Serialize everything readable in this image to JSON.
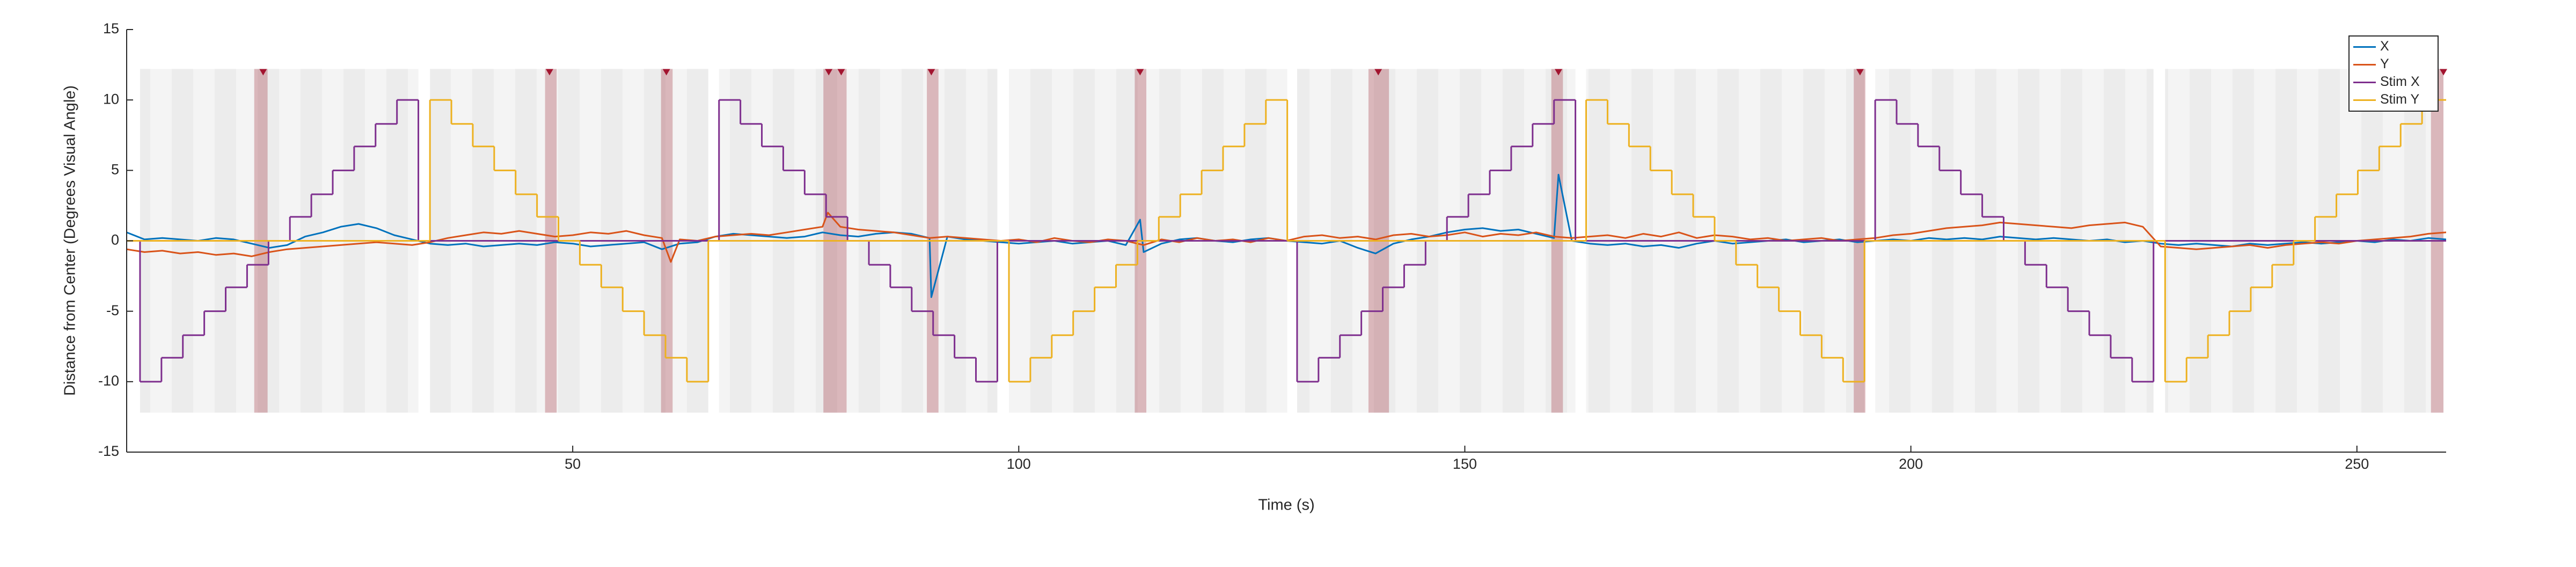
{
  "chart_data": {
    "type": "line",
    "xlabel": "Time (s)",
    "ylabel": "Distance from Center (Degrees Visual Angle)",
    "xlim": [
      0,
      260
    ],
    "xticks": [
      50,
      100,
      150,
      200,
      250
    ],
    "ylim": [
      -15,
      15
    ],
    "yticks": [
      -15,
      -10,
      -5,
      0,
      5,
      10,
      15
    ],
    "grid": false,
    "legend": "northeast",
    "band_ylim": [
      -12.2,
      12.2
    ],
    "blocks": [
      [
        1.5,
        32.7
      ],
      [
        34,
        65.2
      ],
      [
        66.4,
        97.6
      ],
      [
        98.9,
        130.1
      ],
      [
        131.2,
        162.4
      ],
      [
        163.6,
        194.8
      ],
      [
        196,
        227.2
      ],
      [
        228.5,
        259.7
      ]
    ],
    "highlights": [
      [
        14.3,
        15.8
      ],
      [
        46.9,
        48.2
      ],
      [
        59.9,
        61.2
      ],
      [
        78.1,
        80.7
      ],
      [
        89.7,
        91.0
      ],
      [
        113.0,
        114.3
      ],
      [
        139.2,
        141.5
      ],
      [
        159.7,
        161.0
      ],
      [
        193.6,
        194.9
      ],
      [
        258.3,
        259.7
      ]
    ],
    "events": [
      15.3,
      47.4,
      60.5,
      78.7,
      80.1,
      90.2,
      113.6,
      140.3,
      160.5,
      194.3,
      259.7
    ],
    "series": [
      {
        "name": "X",
        "color": "#0072BD",
        "x": [
          0,
          2,
          4,
          6,
          8,
          10,
          12,
          14,
          16,
          18,
          20,
          22,
          24,
          26,
          28,
          30,
          32,
          34,
          36,
          38,
          40,
          42,
          44,
          46,
          48,
          50,
          52,
          54,
          56,
          58,
          60,
          62,
          64,
          66,
          68,
          70,
          72,
          74,
          76,
          78,
          80,
          82,
          84,
          86,
          88,
          90,
          90.2,
          92,
          94,
          96,
          98,
          100,
          102,
          104,
          106,
          108,
          110,
          112,
          113.6,
          114,
          116,
          118,
          120,
          122,
          124,
          126,
          128,
          130,
          132,
          134,
          136,
          138,
          140,
          142,
          144,
          146,
          148,
          150,
          152,
          154,
          156,
          158,
          160,
          160.5,
          162,
          164,
          166,
          168,
          170,
          172,
          174,
          176,
          178,
          180,
          182,
          184,
          186,
          188,
          190,
          192,
          194,
          196,
          198,
          200,
          202,
          204,
          206,
          208,
          210,
          212,
          214,
          216,
          218,
          220,
          222,
          224,
          226,
          228,
          230,
          232,
          234,
          236,
          238,
          240,
          242,
          244,
          246,
          248,
          250,
          252,
          254,
          256,
          258,
          260
        ],
        "values": [
          0.6,
          0.1,
          0.2,
          0.1,
          0.0,
          0.2,
          0.1,
          -0.2,
          -0.5,
          -0.3,
          0.3,
          0.6,
          1.0,
          1.2,
          0.9,
          0.4,
          0.1,
          -0.2,
          -0.3,
          -0.2,
          -0.4,
          -0.3,
          -0.2,
          -0.3,
          -0.1,
          -0.2,
          -0.4,
          -0.3,
          -0.2,
          -0.1,
          -0.6,
          -0.2,
          -0.1,
          0.3,
          0.5,
          0.4,
          0.3,
          0.2,
          0.3,
          0.6,
          0.4,
          0.3,
          0.5,
          0.6,
          0.5,
          0.2,
          -4.0,
          0.3,
          0.1,
          0.0,
          -0.1,
          -0.2,
          -0.1,
          0.0,
          -0.2,
          -0.1,
          0.0,
          -0.3,
          1.5,
          -0.8,
          -0.2,
          0.1,
          0.2,
          0.0,
          -0.1,
          0.1,
          0.2,
          0.0,
          -0.1,
          -0.2,
          0.0,
          -0.5,
          -0.9,
          -0.2,
          0.1,
          0.3,
          0.6,
          0.8,
          0.9,
          0.7,
          0.8,
          0.5,
          0.2,
          4.7,
          0.0,
          -0.2,
          -0.3,
          -0.2,
          -0.4,
          -0.3,
          -0.5,
          -0.2,
          0.0,
          -0.2,
          -0.1,
          0.0,
          0.1,
          -0.1,
          0.0,
          0.1,
          -0.1,
          0.0,
          0.1,
          0.0,
          0.2,
          0.1,
          0.2,
          0.1,
          0.3,
          0.2,
          0.1,
          0.2,
          0.1,
          0.0,
          0.1,
          -0.1,
          0.0,
          -0.2,
          -0.3,
          -0.2,
          -0.3,
          -0.4,
          -0.2,
          -0.3,
          -0.2,
          -0.1,
          -0.2,
          -0.1,
          0.0,
          -0.1,
          0.1,
          0.0,
          0.2,
          0.1
        ]
      },
      {
        "name": "Y",
        "color": "#D95319",
        "x": [
          0,
          2,
          4,
          6,
          8,
          10,
          12,
          14,
          16,
          18,
          20,
          22,
          24,
          26,
          28,
          30,
          32,
          34,
          36,
          38,
          40,
          42,
          44,
          46,
          48,
          50,
          52,
          54,
          56,
          58,
          60,
          61,
          62,
          64,
          66,
          68,
          70,
          72,
          74,
          76,
          78,
          78.6,
          80,
          82,
          84,
          86,
          88,
          90,
          92,
          94,
          96,
          98,
          100,
          102,
          104,
          106,
          108,
          110,
          112,
          114,
          116,
          118,
          120,
          122,
          124,
          126,
          128,
          130,
          132,
          134,
          136,
          138,
          140,
          142,
          144,
          146,
          148,
          150,
          152,
          154,
          156,
          158,
          160,
          162,
          164,
          166,
          168,
          170,
          172,
          174,
          176,
          178,
          180,
          182,
          184,
          186,
          188,
          190,
          192,
          194,
          196,
          198,
          200,
          202,
          204,
          206,
          208,
          210,
          212,
          214,
          216,
          218,
          220,
          222,
          224,
          226,
          228,
          230,
          232,
          234,
          236,
          238,
          240,
          242,
          244,
          246,
          248,
          250,
          252,
          254,
          256,
          258,
          260
        ],
        "values": [
          -0.6,
          -0.8,
          -0.7,
          -0.9,
          -0.8,
          -1.0,
          -0.9,
          -1.1,
          -0.8,
          -0.6,
          -0.5,
          -0.4,
          -0.3,
          -0.2,
          -0.1,
          -0.2,
          -0.3,
          -0.1,
          0.2,
          0.4,
          0.6,
          0.5,
          0.7,
          0.5,
          0.3,
          0.4,
          0.6,
          0.5,
          0.7,
          0.4,
          0.2,
          -1.5,
          0.1,
          0.0,
          0.3,
          0.4,
          0.5,
          0.4,
          0.6,
          0.8,
          1.0,
          2.0,
          1.0,
          0.8,
          0.7,
          0.6,
          0.4,
          0.2,
          0.3,
          0.2,
          0.1,
          0.0,
          0.1,
          -0.1,
          0.2,
          0.0,
          -0.1,
          0.1,
          0.0,
          -0.3,
          0.1,
          -0.1,
          0.2,
          0.0,
          0.1,
          -0.1,
          0.2,
          0.0,
          0.3,
          0.4,
          0.2,
          0.3,
          0.1,
          0.4,
          0.5,
          0.3,
          0.4,
          0.6,
          0.3,
          0.5,
          0.4,
          0.6,
          0.3,
          0.2,
          0.3,
          0.4,
          0.2,
          0.5,
          0.3,
          0.6,
          0.2,
          0.4,
          0.3,
          0.1,
          0.2,
          0.0,
          0.1,
          0.2,
          0.0,
          0.1,
          0.2,
          0.4,
          0.5,
          0.7,
          0.9,
          1.0,
          1.1,
          1.3,
          1.2,
          1.1,
          1.0,
          0.9,
          1.1,
          1.2,
          1.3,
          1.0,
          -0.4,
          -0.5,
          -0.6,
          -0.5,
          -0.4,
          -0.3,
          -0.5,
          -0.3,
          -0.2,
          -0.1,
          -0.2,
          0.0,
          0.1,
          0.2,
          0.3,
          0.5,
          0.6
        ]
      },
      {
        "name": "Stim X",
        "color": "#7E2F8E",
        "drawstyle": "steps-post",
        "x": [
          0,
          1.5,
          3.9,
          6.3,
          8.7,
          11.1,
          13.5,
          15.9,
          18.3,
          20.7,
          23.1,
          25.5,
          27.9,
          30.3,
          32.7,
          66.4,
          68.8,
          71.2,
          73.6,
          76.0,
          78.4,
          80.8,
          83.2,
          85.6,
          88.0,
          90.4,
          92.8,
          95.2,
          97.6,
          131.2,
          133.6,
          136.0,
          138.4,
          140.8,
          143.2,
          145.6,
          148.0,
          150.4,
          152.8,
          155.2,
          157.6,
          160.0,
          162.4,
          196.0,
          198.4,
          200.8,
          203.2,
          205.6,
          208.0,
          210.4,
          212.8,
          215.2,
          217.6,
          220.0,
          222.4,
          224.8,
          227.2,
          260
        ],
        "values": [
          0,
          -10,
          -8.3,
          -6.7,
          -5,
          -3.3,
          -1.7,
          0,
          1.7,
          3.3,
          5,
          6.7,
          8.3,
          10,
          0,
          10,
          8.3,
          6.7,
          5,
          3.3,
          1.7,
          0,
          -1.7,
          -3.3,
          -5,
          -6.7,
          -8.3,
          -10,
          0,
          -10,
          -8.3,
          -6.7,
          -5,
          -3.3,
          -1.7,
          0,
          1.7,
          3.3,
          5,
          6.7,
          8.3,
          10,
          0,
          10,
          8.3,
          6.7,
          5,
          3.3,
          1.7,
          0,
          -1.7,
          -3.3,
          -5,
          -6.7,
          -8.3,
          -10,
          0,
          0
        ]
      },
      {
        "name": "Stim Y",
        "color": "#EDB120",
        "drawstyle": "steps-post",
        "x": [
          0,
          34.0,
          36.4,
          38.8,
          41.2,
          43.6,
          46.0,
          48.4,
          50.8,
          53.2,
          55.6,
          58.0,
          60.4,
          62.8,
          65.2,
          98.9,
          101.3,
          103.7,
          106.1,
          108.5,
          110.9,
          113.3,
          115.7,
          118.1,
          120.5,
          122.9,
          125.3,
          127.7,
          130.1,
          163.6,
          166.0,
          168.4,
          170.8,
          173.2,
          175.6,
          178.0,
          180.4,
          182.8,
          185.2,
          187.6,
          190.0,
          192.4,
          194.8,
          228.5,
          230.9,
          233.3,
          235.7,
          238.1,
          240.5,
          242.9,
          245.3,
          247.7,
          250.1,
          252.5,
          254.9,
          257.3,
          260
        ],
        "values": [
          0,
          10,
          8.3,
          6.7,
          5,
          3.3,
          1.7,
          0,
          -1.7,
          -3.3,
          -5,
          -6.7,
          -8.3,
          -10,
          0,
          -10,
          -8.3,
          -6.7,
          -5,
          -3.3,
          -1.7,
          0,
          1.7,
          3.3,
          5,
          6.7,
          8.3,
          10,
          0,
          10,
          8.3,
          6.7,
          5,
          3.3,
          1.7,
          0,
          -1.7,
          -3.3,
          -5,
          -6.7,
          -8.3,
          -10,
          0,
          -10,
          -8.3,
          -6.7,
          -5,
          -3.3,
          -1.7,
          0,
          1.7,
          3.3,
          5,
          6.7,
          8.3,
          10,
          10
        ]
      }
    ]
  }
}
